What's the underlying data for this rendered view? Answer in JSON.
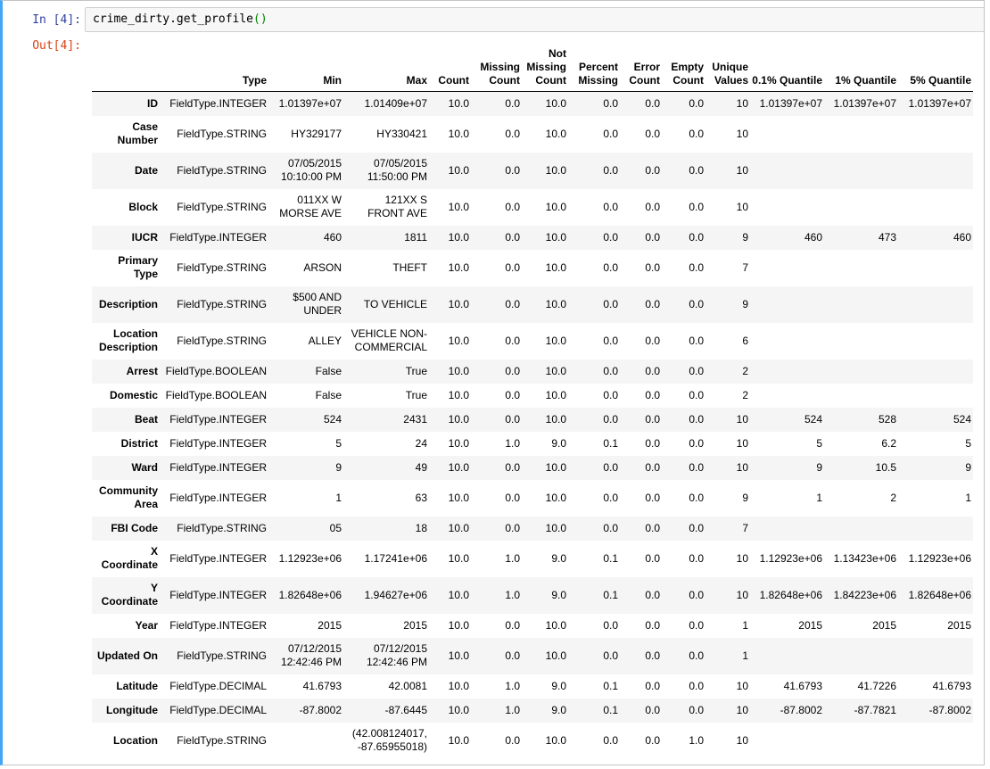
{
  "input_prompt": "In [4]:",
  "output_prompt": "Out[4]:",
  "code": {
    "text": "crime_dirty.get_profile",
    "parens": "()"
  },
  "columns": [
    "Type",
    "Min",
    "Max",
    "Count",
    "Missing Count",
    "Not Missing Count",
    "Percent Missing",
    "Error Count",
    "Empty Count",
    "Unique Values",
    "0.1% Quantile",
    "1% Quantile",
    "5% Quantile"
  ],
  "rows": [
    {
      "label": "ID",
      "cells": [
        "FieldType.INTEGER",
        "1.01397e+07",
        "1.01409e+07",
        "10.0",
        "0.0",
        "10.0",
        "0.0",
        "0.0",
        "0.0",
        "10",
        "1.01397e+07",
        "1.01397e+07",
        "1.01397e+07"
      ]
    },
    {
      "label": "Case Number",
      "cells": [
        "FieldType.STRING",
        "HY329177",
        "HY330421",
        "10.0",
        "0.0",
        "10.0",
        "0.0",
        "0.0",
        "0.0",
        "10",
        "",
        "",
        ""
      ]
    },
    {
      "label": "Date",
      "cells": [
        "FieldType.STRING",
        "07/05/2015 10:10:00 PM",
        "07/05/2015 11:50:00 PM",
        "10.0",
        "0.0",
        "10.0",
        "0.0",
        "0.0",
        "0.0",
        "10",
        "",
        "",
        ""
      ]
    },
    {
      "label": "Block",
      "cells": [
        "FieldType.STRING",
        "011XX W MORSE AVE",
        "121XX S FRONT AVE",
        "10.0",
        "0.0",
        "10.0",
        "0.0",
        "0.0",
        "0.0",
        "10",
        "",
        "",
        ""
      ]
    },
    {
      "label": "IUCR",
      "cells": [
        "FieldType.INTEGER",
        "460",
        "1811",
        "10.0",
        "0.0",
        "10.0",
        "0.0",
        "0.0",
        "0.0",
        "9",
        "460",
        "473",
        "460"
      ]
    },
    {
      "label": "Primary Type",
      "cells": [
        "FieldType.STRING",
        "ARSON",
        "THEFT",
        "10.0",
        "0.0",
        "10.0",
        "0.0",
        "0.0",
        "0.0",
        "7",
        "",
        "",
        ""
      ]
    },
    {
      "label": "Description",
      "cells": [
        "FieldType.STRING",
        "$500 AND UNDER",
        "TO VEHICLE",
        "10.0",
        "0.0",
        "10.0",
        "0.0",
        "0.0",
        "0.0",
        "9",
        "",
        "",
        ""
      ]
    },
    {
      "label": "Location Description",
      "cells": [
        "FieldType.STRING",
        "ALLEY",
        "VEHICLE NON-COMMERCIAL",
        "10.0",
        "0.0",
        "10.0",
        "0.0",
        "0.0",
        "0.0",
        "6",
        "",
        "",
        ""
      ]
    },
    {
      "label": "Arrest",
      "cells": [
        "FieldType.BOOLEAN",
        "False",
        "True",
        "10.0",
        "0.0",
        "10.0",
        "0.0",
        "0.0",
        "0.0",
        "2",
        "",
        "",
        ""
      ]
    },
    {
      "label": "Domestic",
      "cells": [
        "FieldType.BOOLEAN",
        "False",
        "True",
        "10.0",
        "0.0",
        "10.0",
        "0.0",
        "0.0",
        "0.0",
        "2",
        "",
        "",
        ""
      ]
    },
    {
      "label": "Beat",
      "cells": [
        "FieldType.INTEGER",
        "524",
        "2431",
        "10.0",
        "0.0",
        "10.0",
        "0.0",
        "0.0",
        "0.0",
        "10",
        "524",
        "528",
        "524"
      ]
    },
    {
      "label": "District",
      "cells": [
        "FieldType.INTEGER",
        "5",
        "24",
        "10.0",
        "1.0",
        "9.0",
        "0.1",
        "0.0",
        "0.0",
        "10",
        "5",
        "6.2",
        "5"
      ]
    },
    {
      "label": "Ward",
      "cells": [
        "FieldType.INTEGER",
        "9",
        "49",
        "10.0",
        "0.0",
        "10.0",
        "0.0",
        "0.0",
        "0.0",
        "10",
        "9",
        "10.5",
        "9"
      ]
    },
    {
      "label": "Community Area",
      "cells": [
        "FieldType.INTEGER",
        "1",
        "63",
        "10.0",
        "0.0",
        "10.0",
        "0.0",
        "0.0",
        "0.0",
        "9",
        "1",
        "2",
        "1"
      ]
    },
    {
      "label": "FBI Code",
      "cells": [
        "FieldType.STRING",
        "05",
        "18",
        "10.0",
        "0.0",
        "10.0",
        "0.0",
        "0.0",
        "0.0",
        "7",
        "",
        "",
        ""
      ]
    },
    {
      "label": "X Coordinate",
      "cells": [
        "FieldType.INTEGER",
        "1.12923e+06",
        "1.17241e+06",
        "10.0",
        "1.0",
        "9.0",
        "0.1",
        "0.0",
        "0.0",
        "10",
        "1.12923e+06",
        "1.13423e+06",
        "1.12923e+06"
      ]
    },
    {
      "label": "Y Coordinate",
      "cells": [
        "FieldType.INTEGER",
        "1.82648e+06",
        "1.94627e+06",
        "10.0",
        "1.0",
        "9.0",
        "0.1",
        "0.0",
        "0.0",
        "10",
        "1.82648e+06",
        "1.84223e+06",
        "1.82648e+06"
      ]
    },
    {
      "label": "Year",
      "cells": [
        "FieldType.INTEGER",
        "2015",
        "2015",
        "10.0",
        "0.0",
        "10.0",
        "0.0",
        "0.0",
        "0.0",
        "1",
        "2015",
        "2015",
        "2015"
      ]
    },
    {
      "label": "Updated On",
      "cells": [
        "FieldType.STRING",
        "07/12/2015 12:42:46 PM",
        "07/12/2015 12:42:46 PM",
        "10.0",
        "0.0",
        "10.0",
        "0.0",
        "0.0",
        "0.0",
        "1",
        "",
        "",
        ""
      ]
    },
    {
      "label": "Latitude",
      "cells": [
        "FieldType.DECIMAL",
        "41.6793",
        "42.0081",
        "10.0",
        "1.0",
        "9.0",
        "0.1",
        "0.0",
        "0.0",
        "10",
        "41.6793",
        "41.7226",
        "41.6793"
      ]
    },
    {
      "label": "Longitude",
      "cells": [
        "FieldType.DECIMAL",
        "-87.8002",
        "-87.6445",
        "10.0",
        "1.0",
        "9.0",
        "0.1",
        "0.0",
        "0.0",
        "10",
        "-87.8002",
        "-87.7821",
        "-87.8002"
      ]
    },
    {
      "label": "Location",
      "cells": [
        "FieldType.STRING",
        "",
        "(42.008124017, -87.65955018)",
        "10.0",
        "0.0",
        "10.0",
        "0.0",
        "0.0",
        "1.0",
        "10",
        "",
        "",
        ""
      ]
    }
  ]
}
